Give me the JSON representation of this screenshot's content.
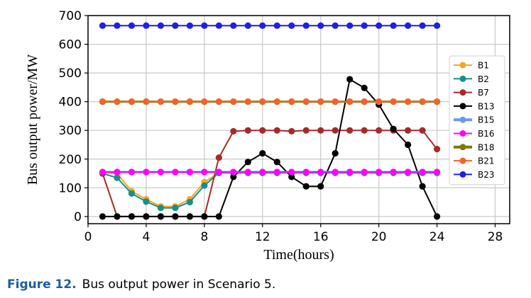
{
  "chart_data": {
    "type": "line",
    "title": "",
    "xlabel": "Time(hours)",
    "ylabel": "Bus output power/MW",
    "xlim": [
      0,
      29
    ],
    "ylim": [
      -25,
      700
    ],
    "xticks": [
      0,
      4,
      8,
      12,
      16,
      20,
      24,
      28
    ],
    "yticks": [
      0,
      100,
      200,
      300,
      400,
      500,
      600,
      700
    ],
    "grid": true,
    "legend_position": "right",
    "x": [
      1,
      2,
      3,
      4,
      5,
      6,
      7,
      8,
      9,
      10,
      11,
      12,
      13,
      14,
      15,
      16,
      17,
      18,
      19,
      20,
      21,
      22,
      23,
      24
    ],
    "series": [
      {
        "name": "B1",
        "color": "#f5a623",
        "values": [
          152,
          150,
          88,
          60,
          35,
          35,
          60,
          120,
          152,
          152,
          152,
          152,
          152,
          152,
          152,
          152,
          152,
          152,
          152,
          152,
          152,
          152,
          152,
          152
        ]
      },
      {
        "name": "B2",
        "color": "#1a8f8a",
        "values": [
          150,
          135,
          80,
          52,
          30,
          30,
          50,
          108,
          152,
          152,
          152,
          152,
          152,
          152,
          152,
          152,
          152,
          152,
          152,
          152,
          152,
          152,
          152,
          152
        ]
      },
      {
        "name": "B7",
        "color": "#a52a2a",
        "values": [
          150,
          0,
          0,
          0,
          0,
          0,
          0,
          0,
          205,
          297,
          300,
          300,
          300,
          297,
          300,
          300,
          300,
          300,
          300,
          300,
          300,
          300,
          300,
          235
        ]
      },
      {
        "name": "B13",
        "color": "#000000",
        "values": [
          0,
          0,
          0,
          0,
          0,
          0,
          0,
          0,
          0,
          138,
          190,
          220,
          190,
          138,
          105,
          105,
          220,
          478,
          448,
          390,
          305,
          250,
          105,
          0
        ]
      },
      {
        "name": "B15",
        "color": "#6a9be8",
        "values": [
          155,
          155,
          155,
          155,
          155,
          155,
          155,
          155,
          155,
          155,
          155,
          155,
          155,
          155,
          155,
          155,
          155,
          155,
          155,
          155,
          155,
          155,
          155,
          155
        ]
      },
      {
        "name": "B16",
        "color": "#ff00ff",
        "values": [
          155,
          155,
          155,
          155,
          155,
          155,
          155,
          155,
          155,
          155,
          155,
          155,
          155,
          155,
          155,
          155,
          155,
          155,
          155,
          155,
          155,
          155,
          155,
          155
        ]
      },
      {
        "name": "B18",
        "color": "#7a7a00",
        "values": [
          400,
          400,
          400,
          400,
          400,
          400,
          400,
          400,
          400,
          400,
          400,
          400,
          400,
          400,
          400,
          400,
          400,
          400,
          400,
          400,
          400,
          400,
          400,
          400
        ]
      },
      {
        "name": "B21",
        "color": "#f0642a",
        "values": [
          400,
          400,
          400,
          400,
          400,
          400,
          400,
          400,
          400,
          400,
          400,
          400,
          400,
          400,
          400,
          400,
          400,
          400,
          400,
          400,
          400,
          400,
          400,
          400
        ]
      },
      {
        "name": "B23",
        "color": "#1f1fe6",
        "values": [
          665,
          665,
          665,
          665,
          665,
          665,
          665,
          665,
          665,
          665,
          665,
          665,
          665,
          665,
          665,
          665,
          665,
          665,
          665,
          665,
          665,
          665,
          665,
          665
        ]
      }
    ]
  },
  "caption": {
    "label": "Figure 12.",
    "text": "Bus output power in Scenario 5."
  }
}
